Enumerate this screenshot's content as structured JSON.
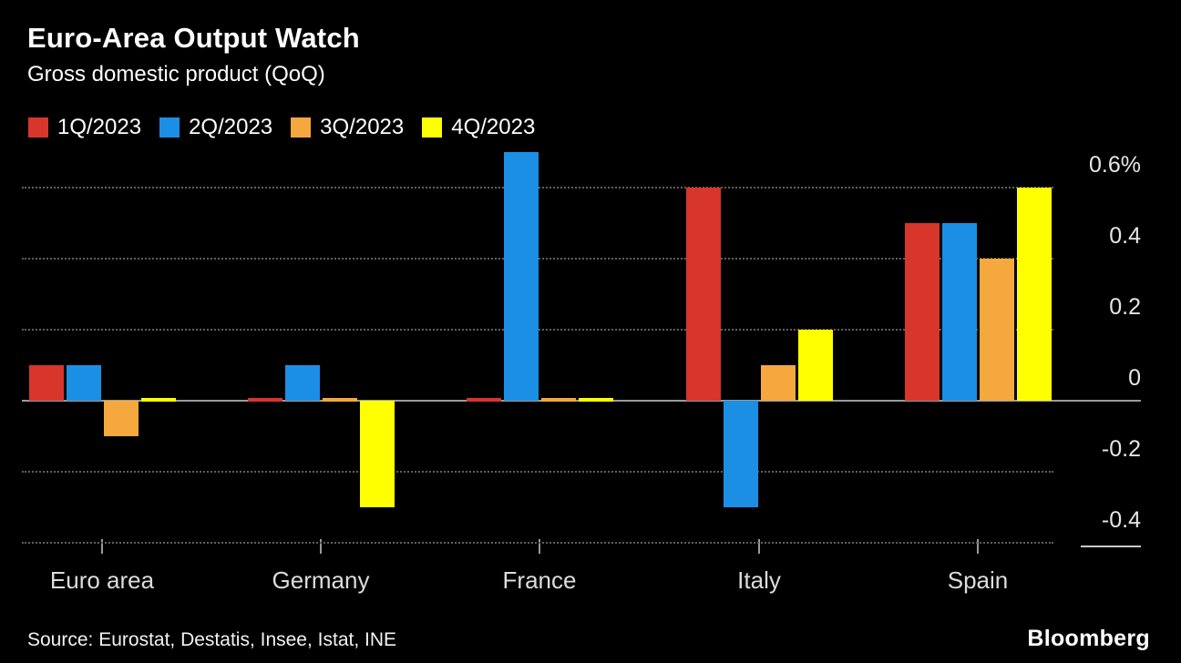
{
  "footer": {
    "source": "Source: Eurostat, Destatis, Insee, Istat, INE",
    "brand": "Bloomberg"
  },
  "colors": {
    "background": "#000000",
    "text": "#ffffff",
    "axis_text": "#e6e6e6",
    "gridline": "#5f5f5f",
    "zero_line": "#9a9a9a"
  },
  "chart_data": {
    "type": "bar",
    "title": "Euro-Area Output Watch",
    "subtitle": "Gross domestic product (QoQ)",
    "categories": [
      "Euro area",
      "Germany",
      "France",
      "Italy",
      "Spain"
    ],
    "series": [
      {
        "name": "1Q/2023",
        "color": "#d8352b",
        "values": [
          0.1,
          0.0,
          0.0,
          0.6,
          0.5
        ]
      },
      {
        "name": "2Q/2023",
        "color": "#1b8fe4",
        "values": [
          0.1,
          0.1,
          0.7,
          -0.3,
          0.5
        ]
      },
      {
        "name": "3Q/2023",
        "color": "#f5a83d",
        "values": [
          -0.1,
          0.0,
          0.0,
          0.1,
          0.4
        ]
      },
      {
        "name": "4Q/2023",
        "color": "#ffff00",
        "values": [
          0.0,
          -0.3,
          0.0,
          0.2,
          0.6
        ]
      }
    ],
    "ylabel": "",
    "xlabel": "",
    "y_ticks": [
      0.6,
      0.4,
      0.2,
      0,
      -0.2,
      -0.4
    ],
    "y_tick_labels": [
      "0.6%",
      "0.4",
      "0.2",
      "0",
      "-0.2",
      "-0.4"
    ],
    "ylim": [
      -0.45,
      0.72
    ],
    "grid": "horizontal-dotted",
    "legend_position": "top"
  }
}
